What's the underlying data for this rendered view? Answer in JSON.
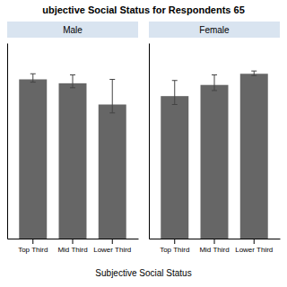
{
  "chart_data": {
    "type": "bar",
    "title": "ubjective Social Status for Respondents 65",
    "x_label": "Subjective Social Status",
    "categories": [
      "Top Third",
      "Mid Third",
      "Lower Third"
    ],
    "color": "#666666",
    "ylim": [
      0,
      35
    ],
    "tick_labels": "x",
    "series": [
      {
        "name": "Male",
        "values": [
          28.5,
          27.8,
          24.0
        ],
        "error_minus": [
          0.5,
          0.8,
          1.5
        ],
        "error_plus": [
          1.0,
          1.5,
          4.5
        ]
      },
      {
        "name": "Female",
        "values": [
          25.5,
          27.5,
          29.5
        ],
        "error_minus": [
          1.5,
          1.0,
          0.3
        ],
        "error_plus": [
          2.8,
          1.8,
          0.5
        ]
      }
    ]
  }
}
